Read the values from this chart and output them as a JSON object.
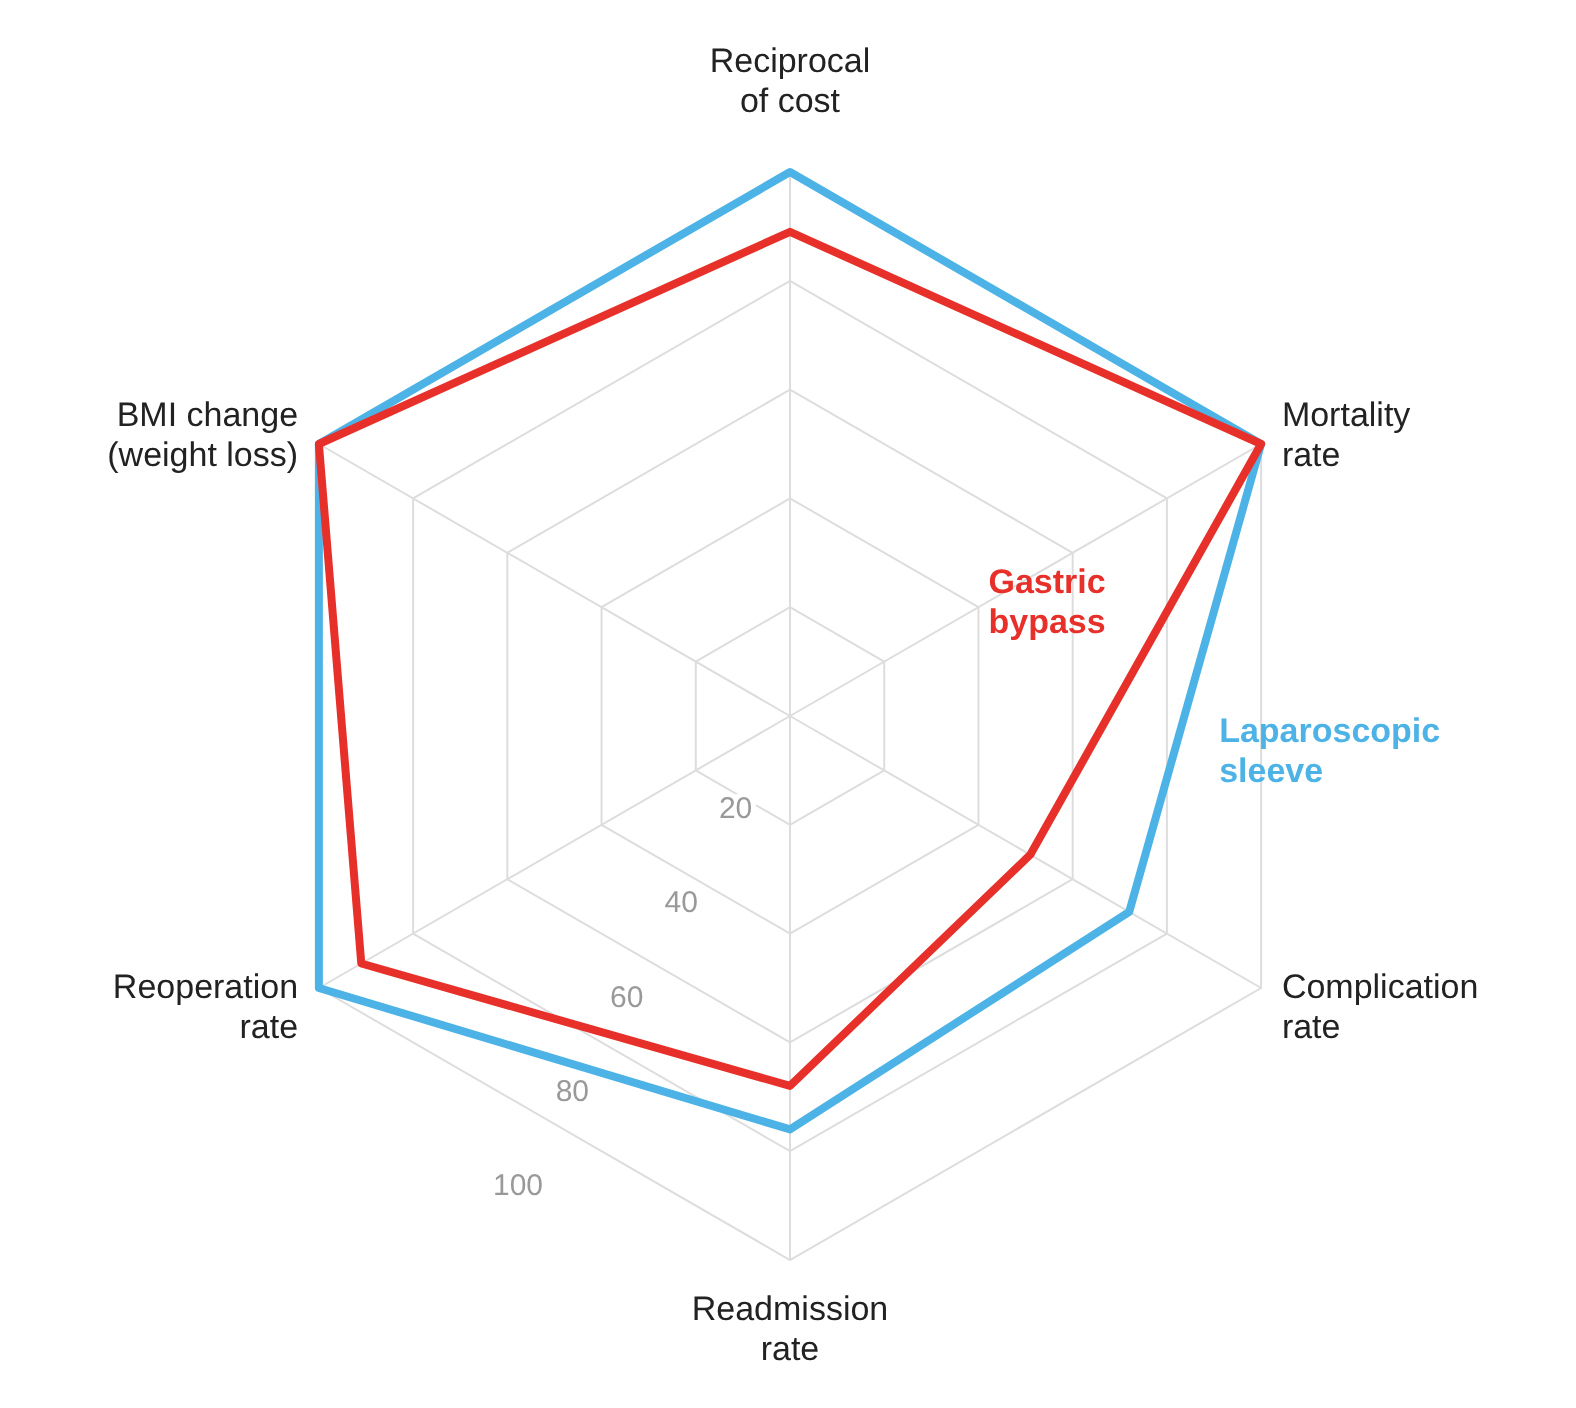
{
  "chart_data": {
    "type": "radar",
    "categories": [
      "Reciprocal of cost",
      "Mortality rate",
      "Complication rate",
      "Readmission rate",
      "Reoperation rate",
      "BMI change (weight loss)"
    ],
    "series": [
      {
        "name": "Laparoscopic sleeve",
        "color": "#4db3e6",
        "values": [
          100,
          100,
          72,
          76,
          100,
          100
        ]
      },
      {
        "name": "Gastric bypass",
        "color": "#e8302a",
        "values": [
          89,
          100,
          51,
          68,
          91,
          100
        ]
      }
    ],
    "ylim": [
      0,
      100
    ],
    "yticks": [
      20,
      40,
      60,
      80,
      100
    ],
    "grid": true
  }
}
